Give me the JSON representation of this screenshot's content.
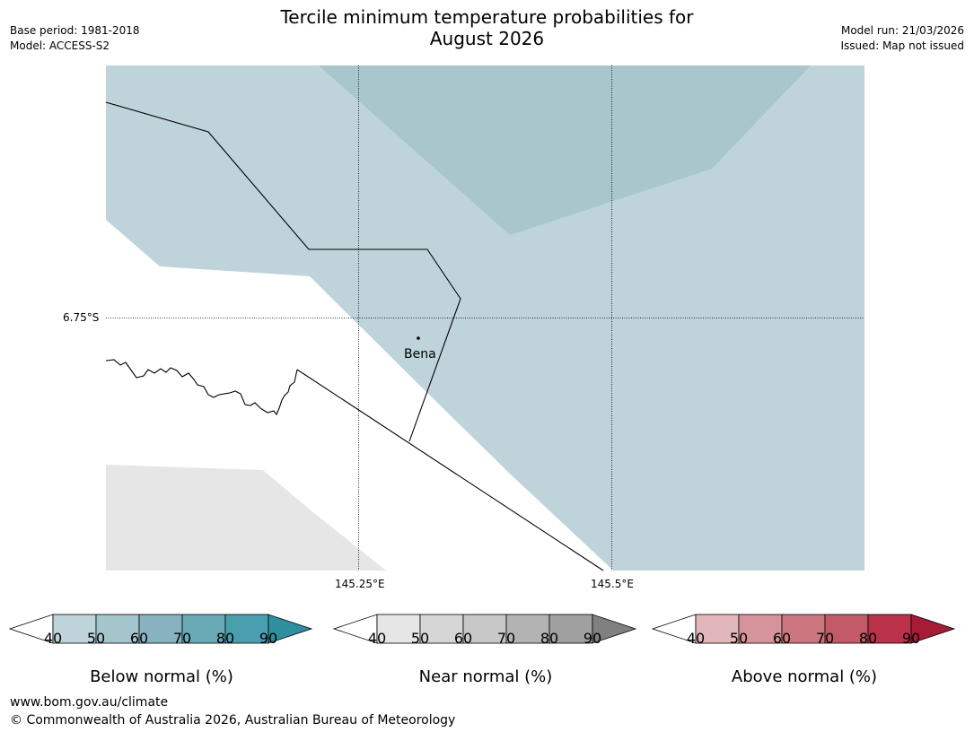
{
  "title_line1": "Tercile minimum temperature probabilities for",
  "title_line2": "August 2026",
  "base_period": "Base period: 1981-2018",
  "model": "Model: ACCESS-S2",
  "model_run": "Model run: 21/03/2026",
  "issued": "Issued: Map not issued",
  "map": {
    "lat_label": "6.75°S",
    "lon_labels": [
      "145.25°E",
      "145.5°E"
    ],
    "place": "Bena"
  },
  "legends": [
    {
      "caption": "Below normal (%)",
      "ticks": [
        "40",
        "50",
        "60",
        "70",
        "80",
        "90"
      ],
      "colors": [
        "#ffffff",
        "#bed4da",
        "#a4c5cb",
        "#86b3bf",
        "#6aaab7",
        "#4a9fae",
        "#2f8f9f"
      ]
    },
    {
      "caption": "Near normal (%)",
      "ticks": [
        "40",
        "50",
        "60",
        "70",
        "80",
        "90"
      ],
      "colors": [
        "#ffffff",
        "#e6e6e6",
        "#d6d6d6",
        "#c8c8c8",
        "#b3b3b3",
        "#a0a0a0",
        "#808080"
      ]
    },
    {
      "caption": "Above normal (%)",
      "ticks": [
        "40",
        "50",
        "60",
        "70",
        "80",
        "90"
      ],
      "colors": [
        "#ffffff",
        "#e2b7bc",
        "#d5939b",
        "#cc7780",
        "#c25a67",
        "#ba324a",
        "#a81b35"
      ]
    }
  ],
  "footer_url": "www.bom.gov.au/climate",
  "footer_copyright": "© Commonwealth of Australia 2026, Australian Bureau of Meteorology"
}
